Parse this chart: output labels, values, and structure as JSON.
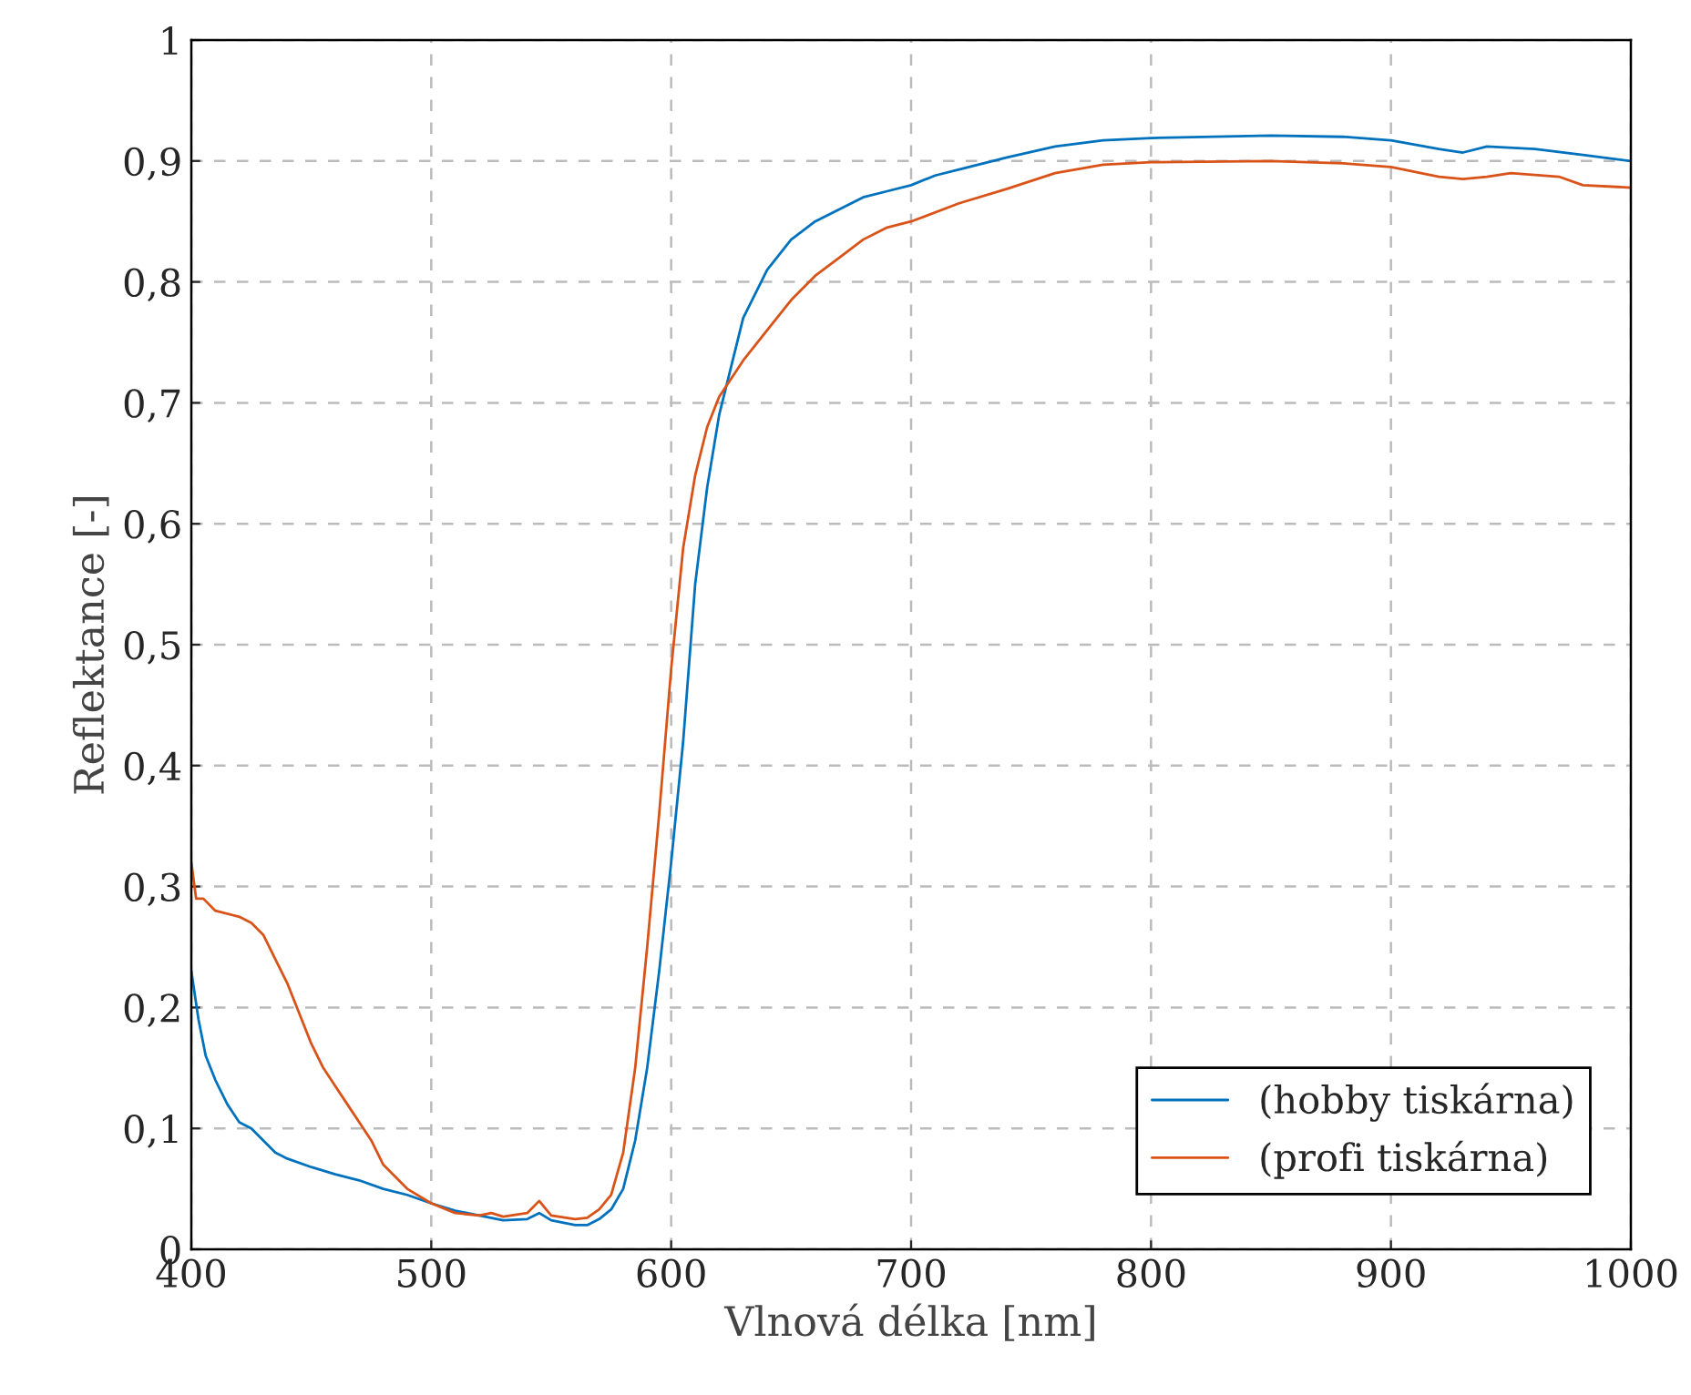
{
  "chart_data": {
    "type": "line",
    "xlabel": "Vlnová délka [nm]",
    "ylabel": "Reflektance [-]",
    "xlim": [
      400,
      1000
    ],
    "xticks": [
      400,
      500,
      600,
      700,
      800,
      900,
      1000
    ],
    "ylim": [
      0,
      1
    ],
    "yticks": [
      0,
      {
        "value": 0.1,
        "label": "0,1"
      },
      {
        "value": 0.2,
        "label": "0,2"
      },
      {
        "value": 0.3,
        "label": "0,3"
      },
      {
        "value": 0.4,
        "label": "0,4"
      },
      {
        "value": 0.5,
        "label": "0,5"
      },
      {
        "value": 0.6,
        "label": "0,6"
      },
      {
        "value": 0.7,
        "label": "0,7"
      },
      {
        "value": 0.8,
        "label": "0,8"
      },
      {
        "value": 0.9,
        "label": "0,9"
      },
      1
    ],
    "grid": true,
    "legend": "bottom right",
    "line_style": "solid",
    "series": [
      {
        "name": "(hobby tiskárna)",
        "color": "#0072bd",
        "x": [
          400,
          403,
          406,
          410,
          415,
          420,
          425,
          430,
          435,
          440,
          450,
          460,
          470,
          480,
          490,
          500,
          510,
          520,
          530,
          540,
          545,
          550,
          560,
          565,
          570,
          575,
          580,
          585,
          590,
          595,
          600,
          605,
          610,
          615,
          620,
          625,
          630,
          640,
          650,
          660,
          670,
          680,
          690,
          700,
          710,
          720,
          740,
          760,
          780,
          800,
          850,
          880,
          900,
          920,
          930,
          940,
          960,
          980,
          1000
        ],
        "values": [
          0.23,
          0.19,
          0.16,
          0.14,
          0.12,
          0.105,
          0.1,
          0.09,
          0.08,
          0.075,
          0.068,
          0.062,
          0.057,
          0.05,
          0.045,
          0.038,
          0.032,
          0.028,
          0.024,
          0.025,
          0.03,
          0.024,
          0.02,
          0.02,
          0.025,
          0.033,
          0.05,
          0.09,
          0.15,
          0.23,
          0.32,
          0.42,
          0.55,
          0.63,
          0.69,
          0.73,
          0.77,
          0.81,
          0.835,
          0.85,
          0.86,
          0.87,
          0.875,
          0.88,
          0.888,
          0.893,
          0.903,
          0.912,
          0.917,
          0.919,
          0.921,
          0.92,
          0.917,
          0.91,
          0.907,
          0.912,
          0.91,
          0.905,
          0.9
        ]
      },
      {
        "name": "(profi tiskárna)",
        "color": "#d95319",
        "x": [
          400,
          402,
          405,
          410,
          420,
          425,
          430,
          435,
          440,
          445,
          450,
          455,
          460,
          465,
          470,
          475,
          480,
          485,
          490,
          500,
          510,
          520,
          525,
          530,
          540,
          545,
          550,
          560,
          565,
          570,
          575,
          580,
          585,
          590,
          595,
          600,
          605,
          610,
          615,
          620,
          630,
          640,
          650,
          660,
          670,
          680,
          690,
          700,
          720,
          740,
          760,
          780,
          800,
          850,
          880,
          900,
          920,
          930,
          940,
          950,
          970,
          980,
          1000
        ],
        "values": [
          0.32,
          0.29,
          0.29,
          0.28,
          0.275,
          0.27,
          0.26,
          0.24,
          0.22,
          0.195,
          0.17,
          0.15,
          0.135,
          0.12,
          0.105,
          0.09,
          0.07,
          0.06,
          0.05,
          0.038,
          0.03,
          0.028,
          0.03,
          0.027,
          0.03,
          0.04,
          0.028,
          0.025,
          0.026,
          0.033,
          0.045,
          0.08,
          0.15,
          0.25,
          0.36,
          0.48,
          0.58,
          0.64,
          0.68,
          0.705,
          0.735,
          0.76,
          0.785,
          0.805,
          0.82,
          0.835,
          0.845,
          0.85,
          0.865,
          0.877,
          0.89,
          0.897,
          0.899,
          0.9,
          0.898,
          0.895,
          0.887,
          0.885,
          0.887,
          0.89,
          0.887,
          0.88,
          0.878
        ]
      }
    ]
  }
}
